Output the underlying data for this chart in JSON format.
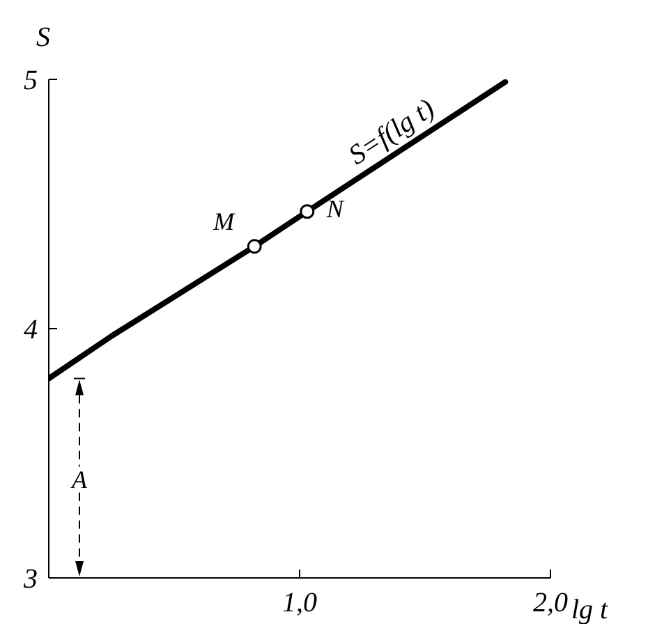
{
  "chart_data": {
    "type": "line",
    "xlabel": "lg t",
    "ylabel": "S",
    "x": [
      0,
      0.25,
      0.82,
      1.03,
      1.82
    ],
    "series": [
      {
        "name": "S=f(lg t)",
        "color": "#000000",
        "values": [
          3.8,
          3.97,
          4.33,
          4.47,
          4.99
        ],
        "marker": "none"
      },
      {
        "type": "scatter",
        "x": [
          0.82,
          1.03
        ],
        "color": "#000000",
        "values": [
          4.33,
          4.47
        ],
        "marker": "circle"
      }
    ],
    "xlim": [
      0,
      2
    ],
    "xticks": [
      {
        "value": 1,
        "label": "1,0"
      },
      {
        "value": 2,
        "label": "2,0"
      }
    ],
    "ylim": [
      3,
      5
    ],
    "yticks": [
      3,
      4,
      5
    ],
    "annotations": [
      {
        "text": "M",
        "x": 0.82,
        "y": 4.33
      },
      {
        "text": "N",
        "x": 1.03,
        "y": 4.47
      },
      "A"
    ],
    "grid": false,
    "legend": false
  }
}
